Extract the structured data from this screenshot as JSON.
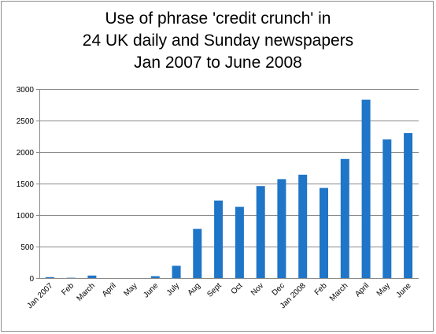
{
  "chart_data": {
    "type": "bar",
    "title_lines": [
      "Use of phrase 'credit crunch' in",
      "24 UK daily and Sunday newspapers",
      "Jan 2007 to June 2008"
    ],
    "categories": [
      "Jan 2007",
      "Feb",
      "March",
      "April",
      "May",
      "June",
      "July",
      "Aug",
      "Sept",
      "Oct",
      "Nov",
      "Dec",
      "Jan 2008",
      "Feb",
      "March",
      "April",
      "May",
      "June"
    ],
    "values": [
      15,
      5,
      40,
      0,
      0,
      30,
      195,
      780,
      1230,
      1130,
      1460,
      1570,
      1640,
      1430,
      1890,
      2830,
      2200,
      2300
    ],
    "yticks": [
      0,
      500,
      1000,
      1500,
      2000,
      2500,
      3000
    ],
    "ylim": [
      0,
      3000
    ],
    "gridlines": true,
    "legend": "none",
    "bar_color": "#1f75c7",
    "xlabel": "",
    "ylabel": ""
  }
}
